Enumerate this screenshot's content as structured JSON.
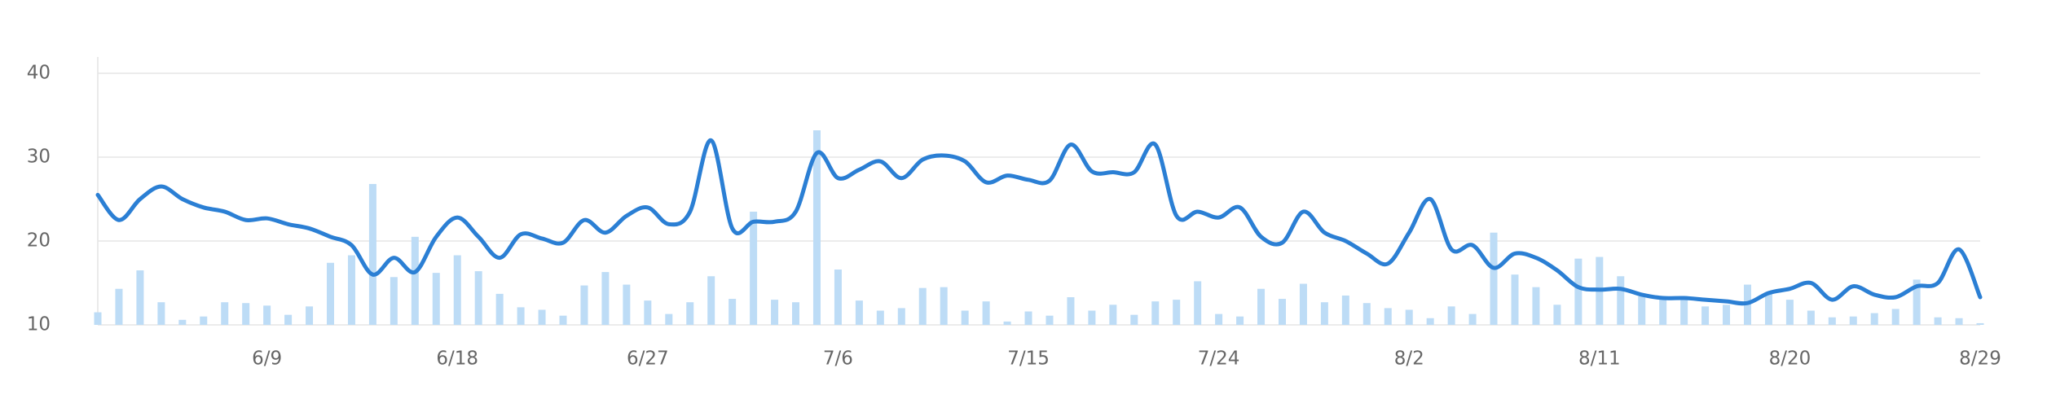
{
  "chart_data": {
    "type": "combo",
    "categories": [
      null,
      null,
      null,
      null,
      null,
      null,
      null,
      null,
      "6/9",
      null,
      null,
      null,
      null,
      null,
      null,
      null,
      null,
      "6/18",
      null,
      null,
      null,
      null,
      null,
      null,
      null,
      null,
      "6/27",
      null,
      null,
      null,
      null,
      null,
      null,
      null,
      null,
      "7/6",
      null,
      null,
      null,
      null,
      null,
      null,
      null,
      null,
      "7/15",
      null,
      null,
      null,
      null,
      null,
      null,
      null,
      null,
      "7/24",
      null,
      null,
      null,
      null,
      null,
      null,
      null,
      null,
      "8/2",
      null,
      null,
      null,
      null,
      null,
      null,
      null,
      null,
      "8/11",
      null,
      null,
      null,
      null,
      null,
      null,
      null,
      null,
      "8/20",
      null,
      null,
      null,
      null,
      null,
      null,
      null,
      null,
      "8/29"
    ],
    "series": [
      {
        "type": "bar",
        "color": "#bddcf6",
        "values": [
          11.5,
          14.3,
          16.5,
          12.7,
          10.6,
          11,
          12.7,
          12.6,
          12.3,
          11.2,
          12.2,
          17.4,
          18.3,
          26.8,
          15.7,
          20.5,
          16.2,
          18.3,
          16.4,
          13.7,
          12.1,
          11.8,
          11.1,
          14.7,
          16.3,
          14.8,
          12.9,
          11.3,
          12.7,
          15.8,
          13.1,
          23.5,
          13,
          12.7,
          33.2,
          16.6,
          12.9,
          11.7,
          12,
          14.4,
          14.5,
          11.7,
          12.8,
          10.4,
          11.6,
          11.1,
          13.3,
          11.7,
          12.4,
          11.2,
          12.8,
          13,
          15.2,
          11.3,
          11,
          14.3,
          13.1,
          14.9,
          12.7,
          13.5,
          12.6,
          12,
          11.8,
          10.8,
          12.2,
          11.3,
          21,
          16,
          14.5,
          12.4,
          17.9,
          18.1,
          15.8,
          13.4,
          13,
          13.1,
          12.2,
          12.4,
          14.8,
          13.9,
          13,
          11.7,
          10.9,
          11,
          11.4,
          11.9,
          15.4,
          10.9,
          10.8,
          10.2
        ]
      },
      {
        "type": "line",
        "color": "#2b7fd4",
        "values": [
          25.5,
          22.5,
          25,
          26.5,
          25,
          24,
          23.5,
          22.5,
          22.7,
          22,
          21.5,
          20.5,
          19.5,
          16,
          18,
          16.3,
          20.5,
          22.8,
          20.5,
          18,
          20.8,
          20.3,
          19.8,
          22.5,
          21,
          23,
          24,
          22,
          23.5,
          32,
          21.5,
          22.3,
          22.3,
          23.5,
          30.5,
          27.5,
          28.5,
          29.5,
          27.5,
          29.7,
          30.2,
          29.5,
          27,
          27.8,
          27.3,
          27.2,
          31.5,
          28.3,
          28.2,
          28.2,
          31.5,
          23,
          23.5,
          22.8,
          24,
          20.5,
          19.8,
          23.5,
          21,
          20,
          18.5,
          17.3,
          21,
          25,
          19,
          19.5,
          16.8,
          18.5,
          18,
          16.5,
          14.5,
          14.2,
          14.3,
          13.6,
          13.2,
          13.2,
          13,
          12.8,
          12.6,
          13.8,
          14.3,
          15,
          13,
          14.6,
          13.6,
          13.3,
          14.6,
          15,
          19,
          13.3
        ]
      }
    ],
    "ylim": [
      10,
      40
    ],
    "yticks": [
      10,
      20,
      30,
      40
    ],
    "grid": true
  }
}
